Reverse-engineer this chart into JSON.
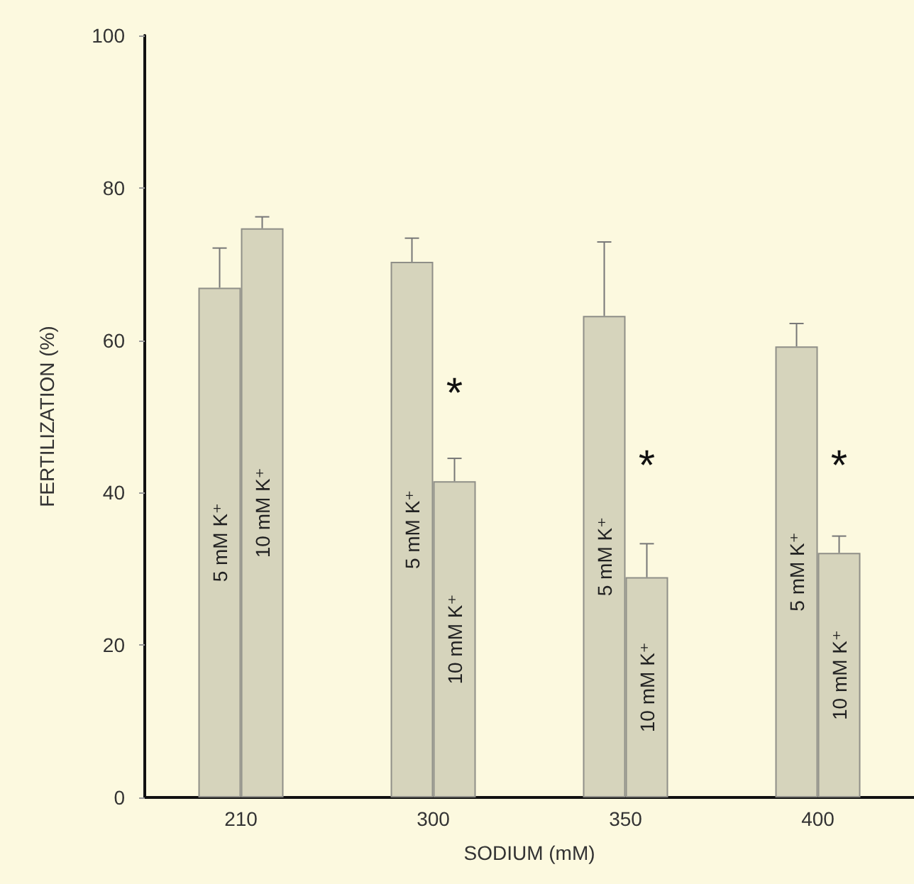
{
  "chart_data": {
    "type": "bar",
    "xlabel": "SODIUM (mM)",
    "ylabel": "FERTILIZATION (%)",
    "categories": [
      "210",
      "300",
      "350",
      "400"
    ],
    "series": [
      {
        "name": "5 mM K⁺",
        "color": "#d6d4bc",
        "values": [
          66.9,
          70.3,
          63.2,
          59.2
        ],
        "errors": [
          [
            66.9,
            72.1
          ],
          [
            70.3,
            73.4
          ],
          [
            63.2,
            72.9
          ],
          [
            59.2,
            62.2
          ]
        ]
      },
      {
        "name": "10 mM K⁺",
        "color": "#d6d4bc",
        "values": [
          74.7,
          41.5,
          28.9,
          32.1
        ],
        "errors": [
          [
            74.7,
            76.2
          ],
          [
            41.5,
            44.5
          ],
          [
            28.9,
            33.3
          ],
          [
            32.1,
            34.3
          ]
        ]
      }
    ],
    "annotations": [
      {
        "text": "*",
        "x": "300",
        "y": 53
      },
      {
        "text": "*",
        "x": "350",
        "y": 43.5
      },
      {
        "text": "*",
        "x": "400",
        "y": 43.5
      }
    ],
    "ylim": [
      0,
      100
    ],
    "yticks": [
      0,
      20,
      40,
      60,
      80,
      100
    ],
    "grid": false,
    "legend": false
  }
}
